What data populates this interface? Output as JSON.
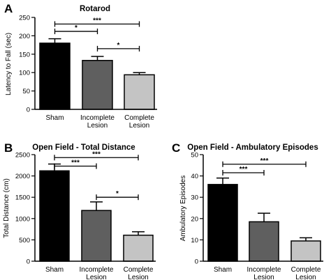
{
  "figure": {
    "panels": [
      {
        "letter": "A"
      },
      {
        "letter": "B"
      },
      {
        "letter": "C"
      }
    ]
  },
  "colors": {
    "bars": [
      "#000000",
      "#5f5f5f",
      "#c4c4c4"
    ],
    "stroke": "#000000"
  },
  "chart_data": [
    {
      "type": "bar",
      "title": "Rotarod",
      "xlabel": "",
      "ylabel": "Latency to Fall (sec)",
      "categories": [
        [
          "Sham"
        ],
        [
          "Incomplete",
          "Lesion"
        ],
        [
          "Complete",
          "Lesion"
        ]
      ],
      "values": [
        180,
        133,
        94
      ],
      "errors": [
        12,
        11,
        6
      ],
      "ylim": [
        0,
        250
      ],
      "yticks": [
        0,
        50,
        100,
        150,
        200,
        250
      ],
      "brackets": [
        {
          "from": 0,
          "to": 2,
          "y": 232,
          "label": "***"
        },
        {
          "from": 0,
          "to": 1,
          "y": 212,
          "label": "*"
        },
        {
          "from": 1,
          "to": 2,
          "y": 165,
          "label": "*"
        }
      ]
    },
    {
      "type": "bar",
      "title": "Open Field - Total Distance",
      "xlabel": "",
      "ylabel": "Total Distance (cm)",
      "categories": [
        [
          "Sham"
        ],
        [
          "Incomplete",
          "Lesion"
        ],
        [
          "Complete",
          "Lesion"
        ]
      ],
      "values": [
        2120,
        1190,
        610
      ],
      "errors": [
        160,
        200,
        80
      ],
      "ylim": [
        0,
        2500
      ],
      "yticks": [
        0,
        500,
        1000,
        1500,
        2000,
        2500
      ],
      "brackets": [
        {
          "from": 0,
          "to": 2,
          "y": 2430,
          "label": "***"
        },
        {
          "from": 0,
          "to": 1,
          "y": 2230,
          "label": "***"
        },
        {
          "from": 1,
          "to": 2,
          "y": 1500,
          "label": "*"
        }
      ]
    },
    {
      "type": "bar",
      "title": "Open Field - Ambulatory Episodes",
      "xlabel": "",
      "ylabel": "Ambulatory Episodes",
      "categories": [
        [
          "Sham"
        ],
        [
          "Incomplete",
          "Lesion"
        ],
        [
          "Complete",
          "Lesion"
        ]
      ],
      "values": [
        36,
        18.5,
        9.5
      ],
      "errors": [
        3,
        4,
        1.5
      ],
      "ylim": [
        0,
        50
      ],
      "yticks": [
        0,
        10,
        20,
        30,
        40,
        50
      ],
      "brackets": [
        {
          "from": 0,
          "to": 2,
          "y": 45.5,
          "label": "***"
        },
        {
          "from": 0,
          "to": 1,
          "y": 41.5,
          "label": "***"
        }
      ]
    }
  ]
}
